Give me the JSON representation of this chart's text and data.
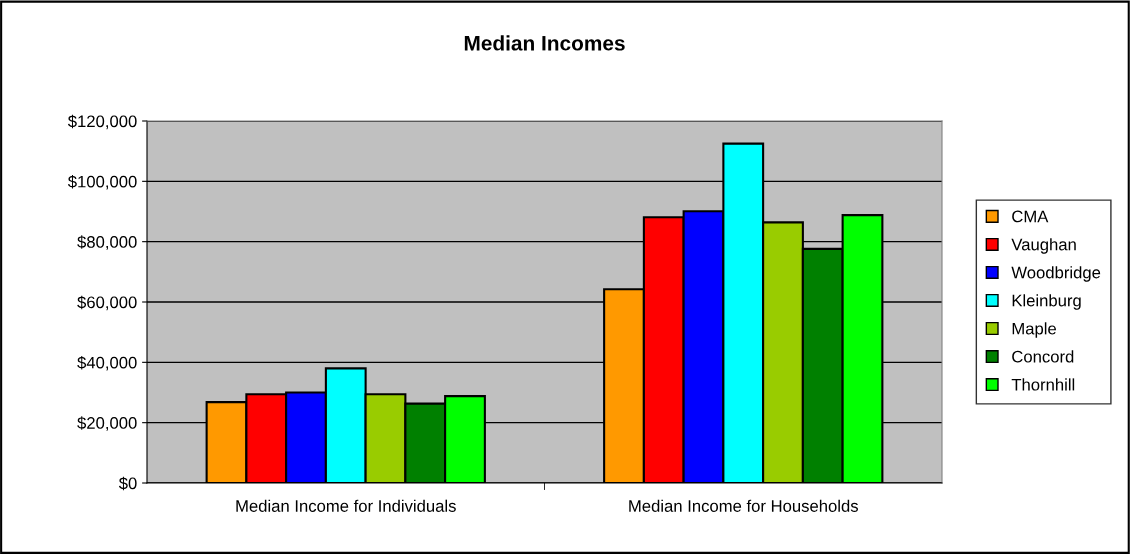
{
  "chart_data": {
    "type": "bar",
    "title": "Median Incomes",
    "categories": [
      "Median Income for Individuals",
      "Median Income for Households"
    ],
    "series": [
      {
        "name": "CMA",
        "color": "#ff9900",
        "values": [
          26800,
          64200
        ]
      },
      {
        "name": "Vaughan",
        "color": "#ff0000",
        "values": [
          29400,
          88100
        ]
      },
      {
        "name": "Woodbridge",
        "color": "#0000ff",
        "values": [
          30000,
          90100
        ]
      },
      {
        "name": "Kleinburg",
        "color": "#00ffff",
        "values": [
          38000,
          112500
        ]
      },
      {
        "name": "Maple",
        "color": "#99cc00",
        "values": [
          29400,
          86400
        ]
      },
      {
        "name": "Concord",
        "color": "#008000",
        "values": [
          26300,
          77600
        ]
      },
      {
        "name": "Thornhill",
        "color": "#00ff00",
        "values": [
          28800,
          88800
        ]
      }
    ],
    "ylim": [
      0,
      120000
    ],
    "yticks": [
      {
        "value": 0,
        "label": "$0"
      },
      {
        "value": 20000,
        "label": "$20,000"
      },
      {
        "value": 40000,
        "label": "$40,000"
      },
      {
        "value": 60000,
        "label": "$60,000"
      },
      {
        "value": 80000,
        "label": "$80,000"
      },
      {
        "value": 100000,
        "label": "$100,000"
      },
      {
        "value": 120000,
        "label": "$120,000"
      }
    ],
    "grid": "y",
    "legend": "right"
  }
}
